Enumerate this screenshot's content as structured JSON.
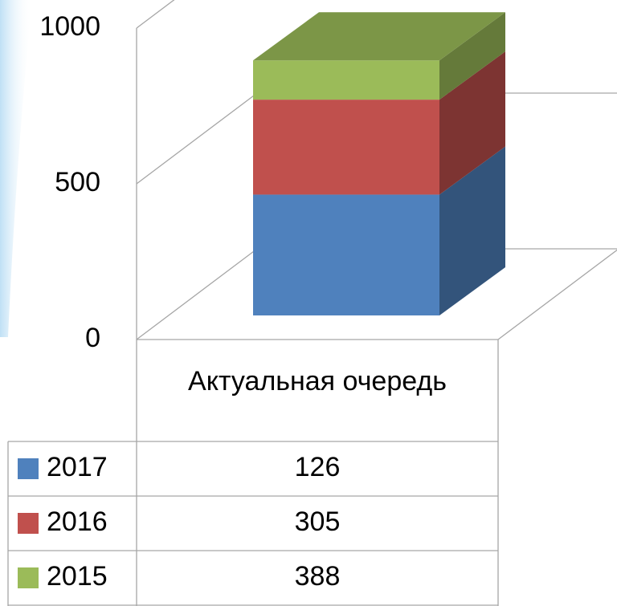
{
  "chart_data": {
    "type": "bar3d_stacked",
    "categories": [
      "Актуальная очередь"
    ],
    "series": [
      {
        "name": "2015",
        "color": "#4f81bd",
        "values": [
          388
        ]
      },
      {
        "name": "2016",
        "color": "#c0504d",
        "values": [
          305
        ]
      },
      {
        "name": "2017",
        "color": "#9bbb59",
        "values": [
          126
        ]
      }
    ],
    "ylim": [
      0,
      1000
    ],
    "yticks": [
      0,
      500,
      1000
    ],
    "grid": true
  }
}
